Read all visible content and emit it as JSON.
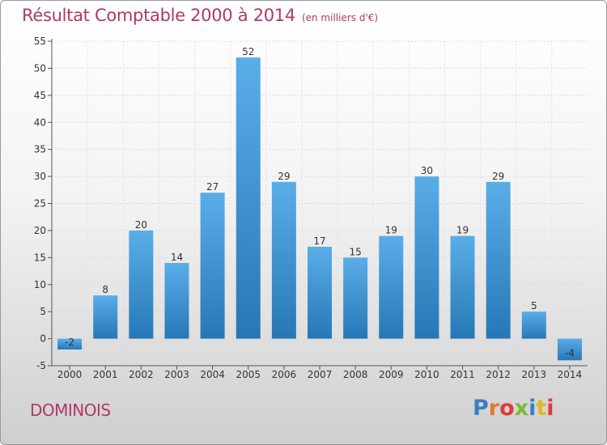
{
  "header": {
    "title": "Résultat Comptable 2000 à 2014",
    "subtitle": "(en milliers d'€)"
  },
  "footer": {
    "commune": "DOMINOIS",
    "logo_text": "Proxiti",
    "logo_colors": [
      "#3a7fc4",
      "#e07b2a",
      "#e03a3a",
      "#7ab83a",
      "#3a7fc4",
      "#e0b82a",
      "#e03a3a"
    ]
  },
  "colors": {
    "bar_top": "#5aaee8",
    "bar_bottom": "#2777b6",
    "title": "#b0386a"
  },
  "chart_data": {
    "type": "bar",
    "title": "Résultat Comptable 2000 à 2014",
    "subtitle": "(en milliers d'€)",
    "xlabel": "",
    "ylabel": "",
    "categories": [
      "2000",
      "2001",
      "2002",
      "2003",
      "2004",
      "2005",
      "2006",
      "2007",
      "2008",
      "2009",
      "2010",
      "2011",
      "2012",
      "2013",
      "2014"
    ],
    "values": [
      -2,
      8,
      20,
      14,
      27,
      52,
      29,
      17,
      15,
      19,
      30,
      19,
      29,
      5,
      -4
    ],
    "ylim": [
      -5,
      55
    ],
    "yticks": [
      -5,
      0,
      5,
      10,
      15,
      20,
      25,
      30,
      35,
      40,
      45,
      50,
      55
    ],
    "grid": true
  }
}
